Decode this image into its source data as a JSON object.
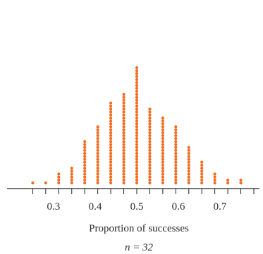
{
  "chart_data": {
    "type": "scatter",
    "subtype": "dotplot",
    "title": "",
    "xlabel": "Proportion of successes",
    "ylabel": "",
    "annotation": "n = 32",
    "xlim": [
      0.2188,
      0.78125
    ],
    "xticks": [
      "0.3",
      "0.4",
      "0.5",
      "0.6",
      "0.7"
    ],
    "xtick_values": [
      0.3,
      0.4,
      0.5,
      0.6,
      0.7
    ],
    "minor_tick_step": 0.03125,
    "grid": false,
    "legend": "none",
    "dot_color": "#f26d21",
    "axis_color": "#222222",
    "x": [
      0.25,
      0.28125,
      0.3125,
      0.34375,
      0.375,
      0.40625,
      0.4375,
      0.46875,
      0.5,
      0.53125,
      0.5625,
      0.59375,
      0.625,
      0.65625,
      0.6875,
      0.71875,
      0.75
    ],
    "counts": [
      1,
      1,
      4,
      6,
      15,
      20,
      28,
      31,
      40,
      26,
      23,
      20,
      13,
      8,
      4,
      2,
      2
    ]
  }
}
